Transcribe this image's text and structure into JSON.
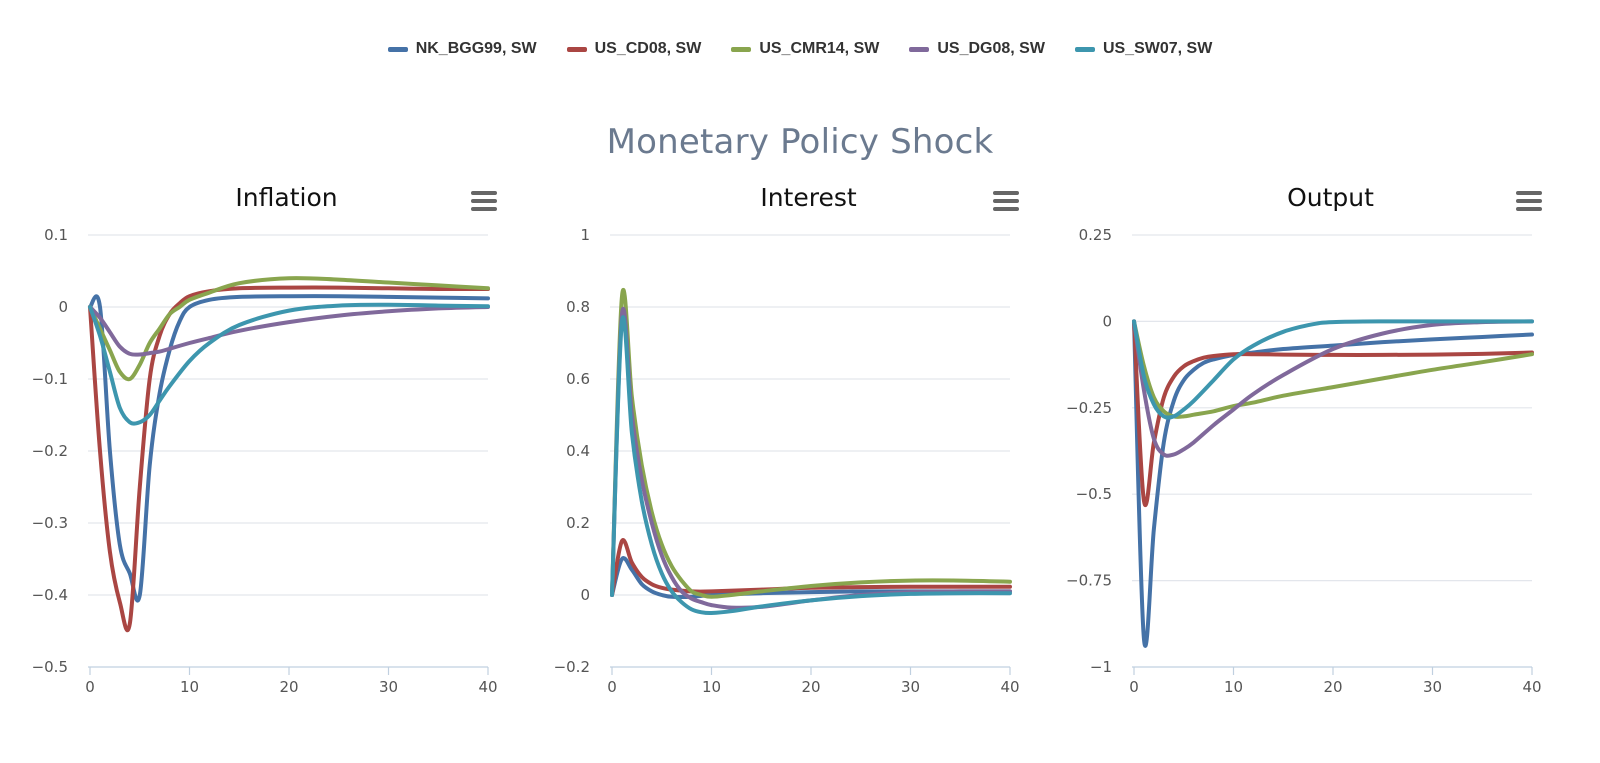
{
  "suptitle": "Monetary Policy Shock",
  "legend": [
    {
      "name": "NK_BGG99, SW",
      "color": "#4572a7"
    },
    {
      "name": "US_CD08, SW",
      "color": "#aa4643"
    },
    {
      "name": "US_CMR14, SW",
      "color": "#89a54e"
    },
    {
      "name": "US_DG08, SW",
      "color": "#80699b"
    },
    {
      "name": "US_SW07, SW",
      "color": "#3d96ae"
    }
  ],
  "chart_data": [
    {
      "type": "line",
      "title": "Inflation",
      "xlim": [
        0,
        40
      ],
      "ylim": [
        -0.5,
        0.1
      ],
      "xticks": [
        0,
        10,
        20,
        30,
        40
      ],
      "yticks": [
        0.1,
        0,
        -0.1,
        -0.2,
        -0.3,
        -0.4,
        -0.5
      ],
      "ytick_labels": [
        "0.1",
        "0",
        "−0.1",
        "−0.2",
        "−0.3",
        "−0.4",
        "−0.5"
      ],
      "series": [
        {
          "name": "NK_BGG99, SW",
          "x": [
            0,
            1,
            2,
            3,
            4,
            5,
            6,
            7,
            8,
            9,
            10,
            12,
            15,
            20,
            25,
            30,
            35,
            40
          ],
          "y": [
            0,
            0,
            -0.2,
            -0.33,
            -0.37,
            -0.4,
            -0.22,
            -0.12,
            -0.06,
            -0.02,
            0.0,
            0.01,
            0.014,
            0.015,
            0.015,
            0.014,
            0.013,
            0.012
          ]
        },
        {
          "name": "US_CD08, SW",
          "x": [
            0,
            1,
            2,
            3,
            4,
            5,
            6,
            7,
            8,
            9,
            10,
            12,
            15,
            20,
            25,
            30,
            35,
            40
          ],
          "y": [
            0,
            -0.2,
            -0.34,
            -0.41,
            -0.44,
            -0.25,
            -0.1,
            -0.04,
            -0.01,
            0.005,
            0.015,
            0.022,
            0.026,
            0.027,
            0.027,
            0.026,
            0.025,
            0.025
          ]
        },
        {
          "name": "US_CMR14, SW",
          "x": [
            0,
            1,
            2,
            3,
            4,
            5,
            6,
            7,
            8,
            9,
            10,
            12,
            15,
            20,
            25,
            30,
            35,
            40
          ],
          "y": [
            0,
            -0.03,
            -0.06,
            -0.09,
            -0.1,
            -0.08,
            -0.05,
            -0.03,
            -0.01,
            0.0,
            0.01,
            0.02,
            0.033,
            0.04,
            0.038,
            0.034,
            0.03,
            0.026
          ]
        },
        {
          "name": "US_DG08, SW",
          "x": [
            0,
            1,
            2,
            3,
            4,
            5,
            6,
            7,
            8,
            10,
            12,
            15,
            20,
            25,
            30,
            35,
            40
          ],
          "y": [
            0,
            -0.015,
            -0.035,
            -0.055,
            -0.065,
            -0.066,
            -0.064,
            -0.062,
            -0.058,
            -0.05,
            -0.043,
            -0.033,
            -0.021,
            -0.012,
            -0.006,
            -0.002,
            0.0
          ]
        },
        {
          "name": "US_SW07, SW",
          "x": [
            0,
            1,
            2,
            3,
            4,
            5,
            6,
            7,
            8,
            10,
            12,
            15,
            20,
            25,
            30,
            35,
            40
          ],
          "y": [
            0,
            -0.04,
            -0.09,
            -0.14,
            -0.16,
            -0.16,
            -0.15,
            -0.13,
            -0.11,
            -0.075,
            -0.05,
            -0.025,
            -0.005,
            0.002,
            0.003,
            0.002,
            0.001
          ]
        }
      ]
    },
    {
      "type": "line",
      "title": "Interest",
      "xlim": [
        0,
        40
      ],
      "ylim": [
        -0.2,
        1
      ],
      "xticks": [
        0,
        10,
        20,
        30,
        40
      ],
      "yticks": [
        1,
        0.8,
        0.6,
        0.4,
        0.2,
        0,
        -0.2
      ],
      "ytick_labels": [
        "1",
        "0.8",
        "0.6",
        "0.4",
        "0.2",
        "0",
        "−0.2"
      ],
      "series": [
        {
          "name": "NK_BGG99, SW",
          "x": [
            0,
            1,
            2,
            3,
            4,
            5,
            6,
            8,
            10,
            15,
            20,
            25,
            30,
            35,
            40
          ],
          "y": [
            0,
            0.1,
            0.07,
            0.03,
            0.01,
            0.0,
            -0.005,
            -0.005,
            0.0,
            0.005,
            0.008,
            0.01,
            0.01,
            0.01,
            0.01
          ]
        },
        {
          "name": "US_CD08, SW",
          "x": [
            0,
            1,
            2,
            3,
            4,
            5,
            6,
            8,
            10,
            15,
            20,
            25,
            30,
            35,
            40
          ],
          "y": [
            0,
            0.15,
            0.09,
            0.05,
            0.03,
            0.02,
            0.015,
            0.01,
            0.01,
            0.015,
            0.02,
            0.022,
            0.023,
            0.023,
            0.023
          ]
        },
        {
          "name": "US_CMR14, SW",
          "x": [
            0,
            1,
            2,
            3,
            4,
            5,
            6,
            7,
            8,
            9,
            10,
            12,
            15,
            20,
            25,
            30,
            35,
            40
          ],
          "y": [
            0,
            0.83,
            0.55,
            0.36,
            0.23,
            0.14,
            0.08,
            0.04,
            0.01,
            0.0,
            -0.005,
            0.0,
            0.01,
            0.025,
            0.035,
            0.04,
            0.04,
            0.037
          ]
        },
        {
          "name": "US_DG08, SW",
          "x": [
            0,
            1,
            2,
            3,
            4,
            5,
            6,
            7,
            8,
            9,
            10,
            12,
            15,
            20,
            25,
            30,
            35,
            40
          ],
          "y": [
            0,
            0.78,
            0.5,
            0.32,
            0.2,
            0.11,
            0.05,
            0.01,
            -0.01,
            -0.02,
            -0.028,
            -0.035,
            -0.033,
            -0.015,
            0.0,
            0.008,
            0.01,
            0.01
          ]
        },
        {
          "name": "US_SW07, SW",
          "x": [
            0,
            1,
            2,
            3,
            4,
            5,
            6,
            7,
            8,
            9,
            10,
            12,
            15,
            20,
            25,
            30,
            35,
            40
          ],
          "y": [
            0,
            0.76,
            0.45,
            0.26,
            0.14,
            0.06,
            0.01,
            -0.02,
            -0.04,
            -0.048,
            -0.05,
            -0.045,
            -0.032,
            -0.015,
            -0.003,
            0.003,
            0.005,
            0.005
          ]
        }
      ]
    },
    {
      "type": "line",
      "title": "Output",
      "xlim": [
        0,
        40
      ],
      "ylim": [
        -1,
        0.25
      ],
      "xticks": [
        0,
        10,
        20,
        30,
        40
      ],
      "yticks": [
        0.25,
        0,
        -0.25,
        -0.5,
        -0.75,
        -1
      ],
      "ytick_labels": [
        "0.25",
        "0",
        "−0.25",
        "−0.5",
        "−0.75",
        "−1"
      ],
      "series": [
        {
          "name": "NK_BGG99, SW",
          "x": [
            0,
            1,
            2,
            3,
            4,
            5,
            6,
            7,
            8,
            10,
            12,
            15,
            20,
            25,
            30,
            35,
            40
          ],
          "y": [
            0,
            -0.92,
            -0.6,
            -0.35,
            -0.23,
            -0.17,
            -0.14,
            -0.12,
            -0.11,
            -0.097,
            -0.09,
            -0.08,
            -0.07,
            -0.06,
            -0.052,
            -0.045,
            -0.038
          ]
        },
        {
          "name": "US_CD08, SW",
          "x": [
            0,
            1,
            2,
            3,
            4,
            5,
            6,
            7,
            8,
            10,
            12,
            15,
            20,
            25,
            30,
            35,
            40
          ],
          "y": [
            0,
            -0.52,
            -0.35,
            -0.22,
            -0.16,
            -0.13,
            -0.115,
            -0.105,
            -0.1,
            -0.095,
            -0.095,
            -0.096,
            -0.097,
            -0.097,
            -0.096,
            -0.094,
            -0.09
          ]
        },
        {
          "name": "US_CMR14, SW",
          "x": [
            0,
            1,
            2,
            3,
            4,
            5,
            6,
            8,
            10,
            12,
            15,
            20,
            25,
            30,
            35,
            40
          ],
          "y": [
            0,
            -0.13,
            -0.22,
            -0.26,
            -0.275,
            -0.275,
            -0.27,
            -0.26,
            -0.245,
            -0.235,
            -0.215,
            -0.19,
            -0.165,
            -0.14,
            -0.118,
            -0.095
          ]
        },
        {
          "name": "US_DG08, SW",
          "x": [
            0,
            1,
            2,
            3,
            4,
            5,
            6,
            8,
            10,
            12,
            15,
            20,
            25,
            30,
            35,
            40
          ],
          "y": [
            0,
            -0.2,
            -0.34,
            -0.385,
            -0.385,
            -0.37,
            -0.35,
            -0.3,
            -0.255,
            -0.21,
            -0.155,
            -0.08,
            -0.035,
            -0.01,
            -0.002,
            0.0
          ]
        },
        {
          "name": "US_SW07, SW",
          "x": [
            0,
            1,
            2,
            3,
            4,
            5,
            6,
            8,
            10,
            12,
            15,
            18,
            20,
            25,
            30,
            35,
            40
          ],
          "y": [
            0,
            -0.16,
            -0.24,
            -0.275,
            -0.275,
            -0.255,
            -0.23,
            -0.17,
            -0.11,
            -0.07,
            -0.03,
            -0.008,
            -0.002,
            0.0,
            0.0,
            0.0,
            0.0
          ]
        }
      ]
    }
  ]
}
